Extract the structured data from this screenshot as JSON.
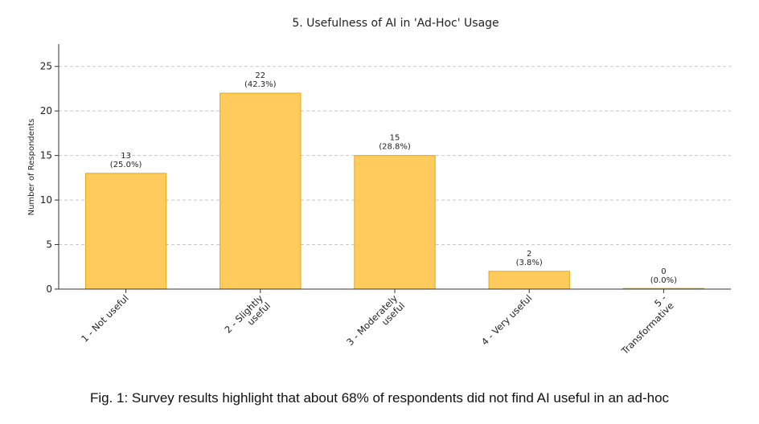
{
  "chart_data": {
    "type": "bar",
    "title": "5. Usefulness of AI in 'Ad-Hoc' Usage",
    "xlabel": "",
    "ylabel": "Number of Respondents",
    "categories": [
      [
        "1 - Not useful"
      ],
      [
        "2 - Slightly",
        "useful"
      ],
      [
        "3 - Moderately",
        "useful"
      ],
      [
        "4 - Very useful"
      ],
      [
        "5 -",
        "Transformative"
      ]
    ],
    "values": [
      13,
      22,
      15,
      2,
      0
    ],
    "data_labels": [
      [
        "13",
        "(25.0%)"
      ],
      [
        "22",
        "(42.3%)"
      ],
      [
        "15",
        "(28.8%)"
      ],
      [
        "2",
        "(3.8%)"
      ],
      [
        "0",
        "(0.0%)"
      ]
    ],
    "yticks": [
      0,
      5,
      10,
      15,
      20,
      25
    ],
    "ylim": [
      0,
      27.5
    ],
    "grid": "y-dashed",
    "bar_color": "#FFCB5C",
    "bar_edge_color": "#E0A818"
  },
  "caption": "Fig. 1: Survey results highlight that about 68% of respondents did not find AI useful in an ad-hoc"
}
